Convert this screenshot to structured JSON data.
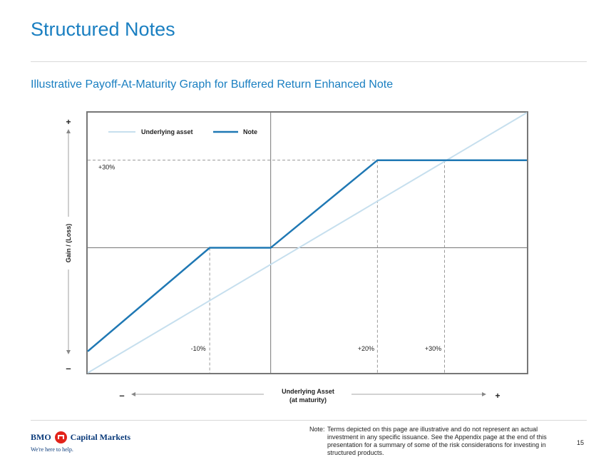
{
  "page": {
    "title": "Structured Notes",
    "subtitle": "Illustrative Payoff-At-Maturity Graph for Buffered Return Enhanced Note",
    "note_label": "Note:",
    "note_text": "Terms depicted on this page are illustrative and do not represent an actual investment in any specific issuance. See the Appendix page at the end of this presentation for a summary of some of the risk considerations for investing in structured products.",
    "page_number": "15"
  },
  "logo": {
    "bmo": "BMO",
    "name": "Capital Markets",
    "tagline": "We're here to help."
  },
  "colors": {
    "note": "#1f78b4",
    "underlying": "#c6dfee",
    "title": "#1a7fc1"
  },
  "chart_data": {
    "type": "line",
    "title": "",
    "xlabel": "Underlying Asset",
    "xlabel_sub": "(at maturity)",
    "ylabel": "Gain / (Loss)",
    "x_minus": "–",
    "x_plus": "+",
    "y_minus": "–",
    "y_plus": "+",
    "xlim": [
      -30,
      42
    ],
    "ylim": [
      -25,
      27
    ],
    "legend_position": "top-left",
    "series": [
      {
        "name": "Underlying asset",
        "x": [
          -30,
          42
        ],
        "y": [
          -25,
          27
        ]
      },
      {
        "name": "Note",
        "x": [
          -30,
          -10,
          0,
          17.5,
          42
        ],
        "y": [
          -20.7,
          0,
          0,
          17.5,
          17.5
        ]
      }
    ],
    "reference_lines": {
      "vertical": [
        {
          "x": -10,
          "label": "-10%"
        },
        {
          "x": 17.5,
          "label": "+20%"
        },
        {
          "x": 28.5,
          "label": "+30%"
        }
      ],
      "horizontal": [
        {
          "y": 17.5,
          "label": "+30%"
        }
      ]
    }
  }
}
